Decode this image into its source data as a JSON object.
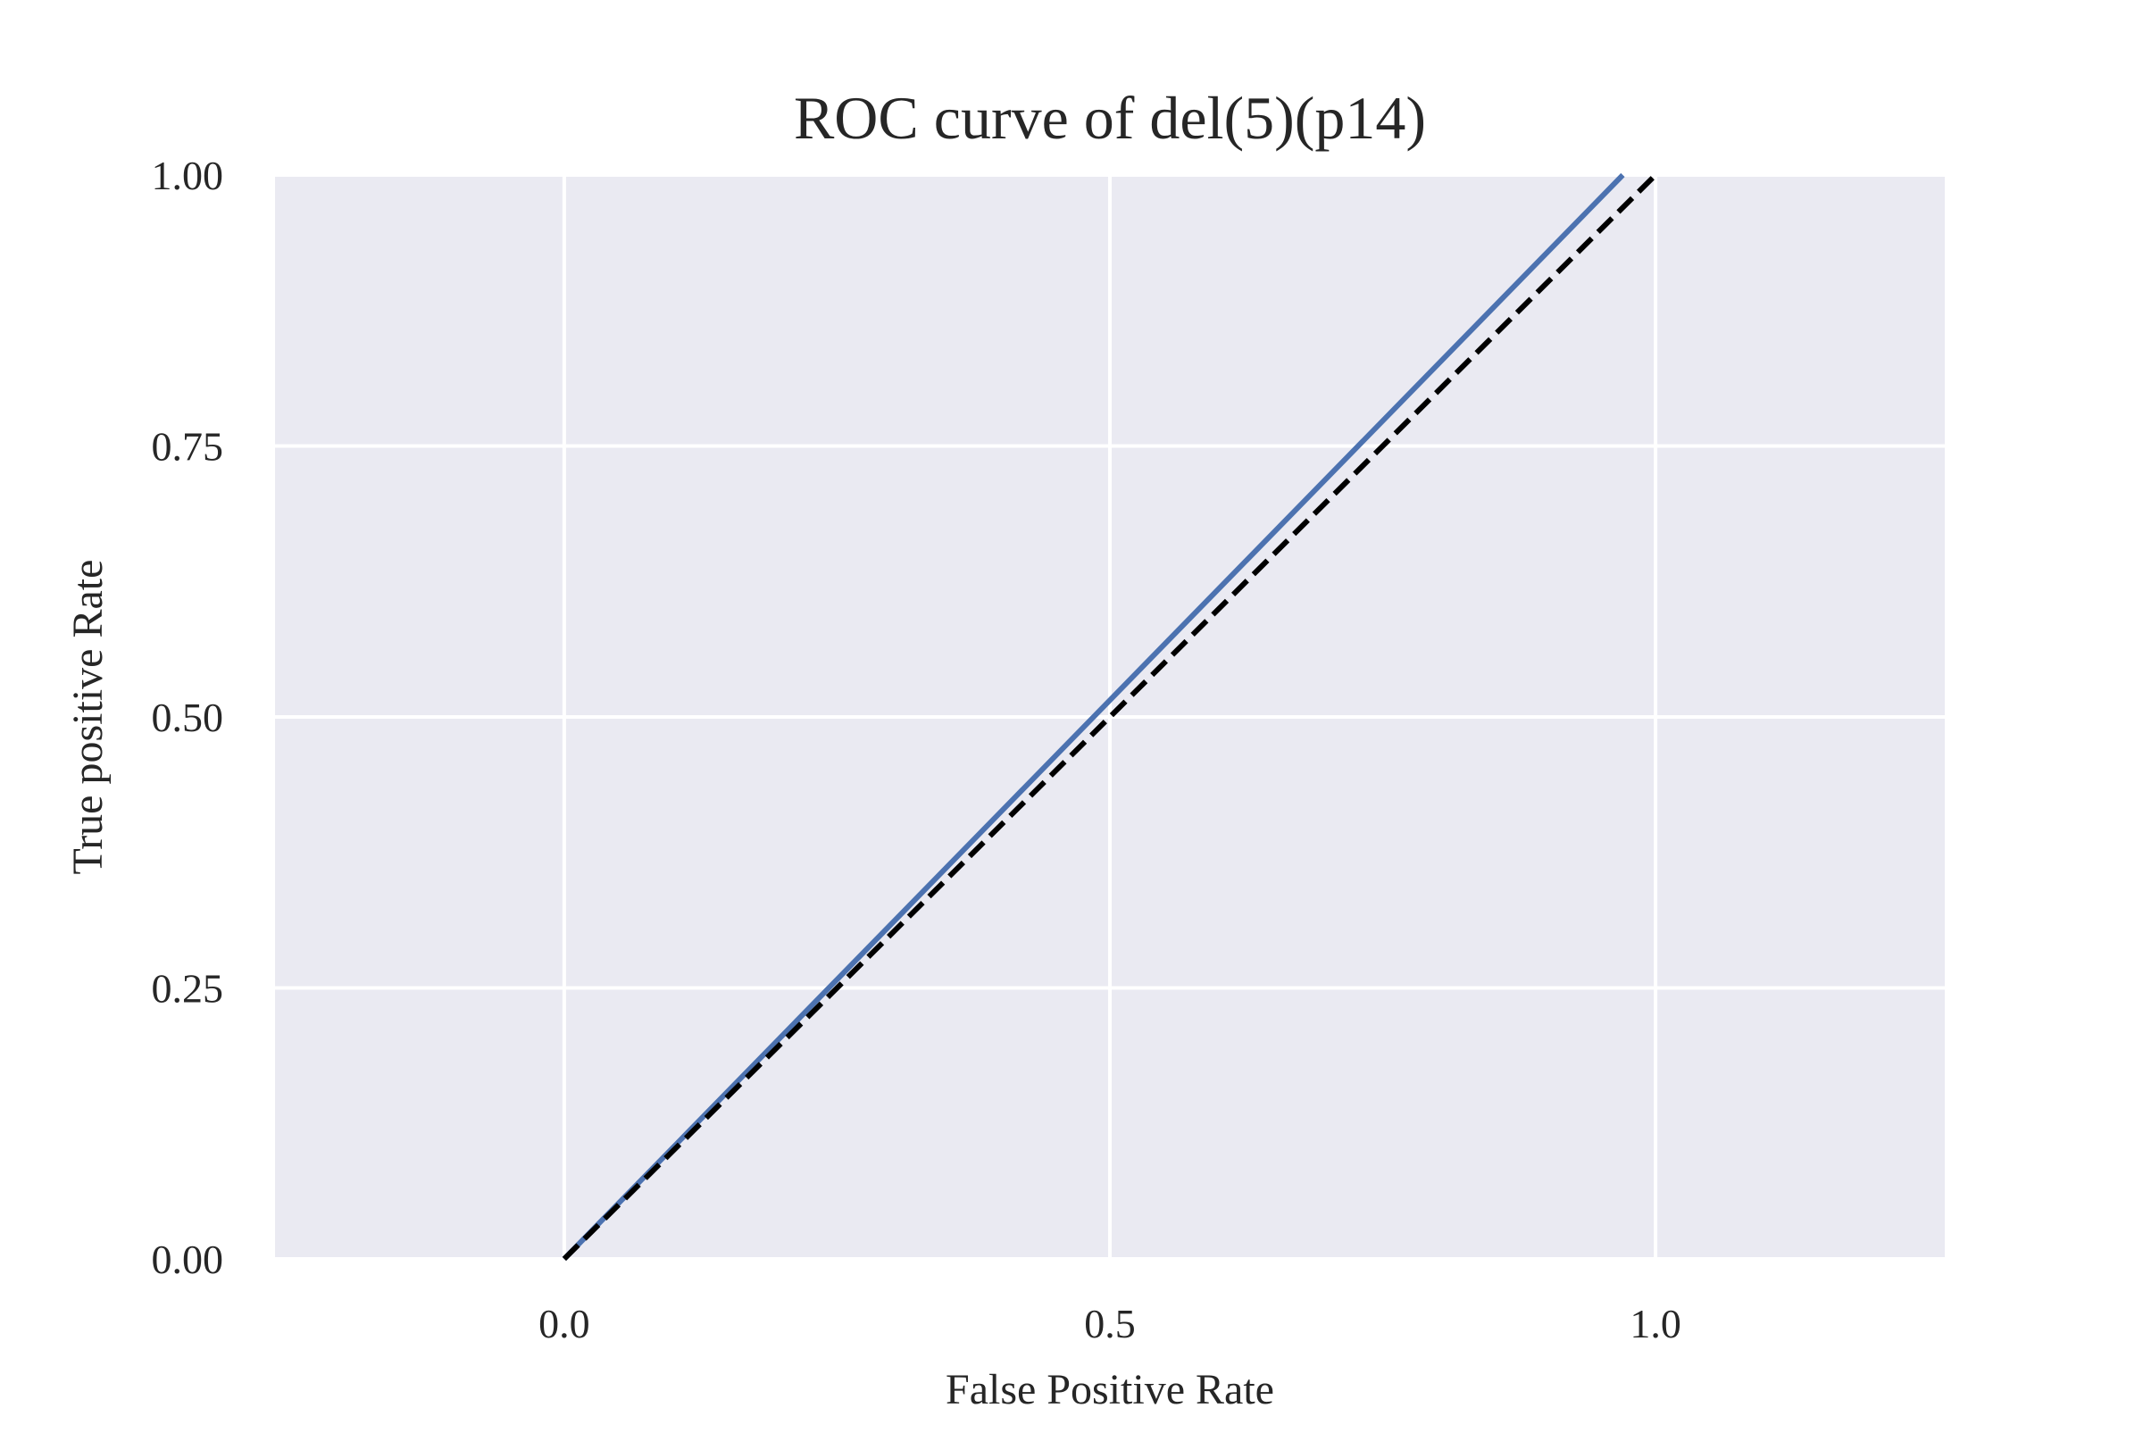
{
  "chart_data": {
    "type": "line",
    "title": "ROC curve of del(5)(p14)",
    "xlabel": "False Positive Rate",
    "ylabel": "True positive Rate",
    "xlim": [
      -0.265,
      1.265
    ],
    "ylim": [
      0.0,
      1.0
    ],
    "x_ticks": [
      0.0,
      0.5,
      1.0
    ],
    "x_tick_labels": [
      "0.0",
      "0.5",
      "1.0"
    ],
    "y_ticks": [
      0.0,
      0.25,
      0.5,
      0.75,
      1.0
    ],
    "y_tick_labels": [
      "0.00",
      "0.25",
      "0.50",
      "0.75",
      "1.00"
    ],
    "grid": true,
    "background_color": "#EAEAF2",
    "grid_color": "#FFFFFF",
    "series": [
      {
        "style": "solid",
        "color": "#4C72B0",
        "x": [
          0.0,
          0.97
        ],
        "y": [
          0.0,
          1.0
        ]
      },
      {
        "style": "dashed",
        "color": "#000000",
        "x": [
          0.0,
          1.0
        ],
        "y": [
          0.0,
          1.0
        ]
      }
    ]
  }
}
